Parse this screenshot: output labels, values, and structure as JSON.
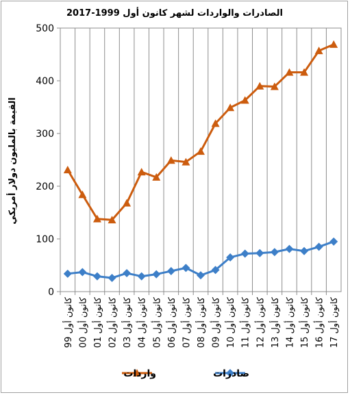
{
  "chart_data": {
    "type": "line",
    "title": "الصادرات والواردات لشهر كانون أول 1999-2017",
    "ylabel": "القيمة بالمليون دولار أمريكي",
    "xlabel": "",
    "ylim": [
      0,
      500
    ],
    "yticks": [
      0,
      100,
      200,
      300,
      400,
      500
    ],
    "grid": "vertical",
    "legend_position": "bottom",
    "categories": [
      "كانون أول 99",
      "كانون أول 00",
      "كانون أول 01",
      "كانون أول 02",
      "كانون أول 03",
      "كانون أول 04",
      "كانون أول 05",
      "كانون أول 06",
      "كانون أول 07",
      "كانون أول 08",
      "كانون أول 09",
      "كانون أول 10",
      "كانون أول 11",
      "كانون أول 12",
      "كانون أول 13",
      "كانون أول 14",
      "كانون أول 15",
      "كانون أول 16",
      "كانون أول 17"
    ],
    "series": [
      {
        "name": "واردات",
        "color": "#cc5c0e",
        "marker": "triangle",
        "values": [
          231,
          184,
          138,
          136,
          168,
          227,
          217,
          249,
          246,
          266,
          319,
          349,
          363,
          390,
          389,
          416,
          416,
          457,
          469
        ]
      },
      {
        "name": "صادرات",
        "color": "#3d7fc8",
        "marker": "diamond",
        "values": [
          34,
          37,
          29,
          26,
          35,
          29,
          33,
          39,
          45,
          31,
          41,
          65,
          72,
          73,
          75,
          81,
          77,
          85,
          95
        ]
      }
    ]
  }
}
